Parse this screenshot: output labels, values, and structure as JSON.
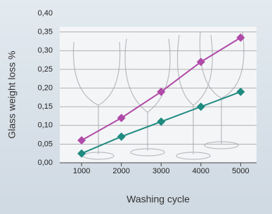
{
  "chart_data": {
    "type": "line",
    "x_label": "Washing cycle",
    "y_label": "Glass weight loss %",
    "x": [
      1000,
      2000,
      3000,
      4000,
      5000
    ],
    "series": [
      {
        "color": "#b04aa8",
        "values": [
          0.06,
          0.12,
          0.19,
          0.27,
          0.335
        ]
      },
      {
        "color": "#1e8a80",
        "values": [
          0.025,
          0.07,
          0.11,
          0.15,
          0.19
        ]
      }
    ],
    "xlim": [
      450,
      5400
    ],
    "xticks": [
      1000,
      2000,
      3000,
      4000,
      5000
    ],
    "ylim": [
      0,
      0.4
    ],
    "yticks": [
      {
        "value": 0,
        "label": "0,00"
      },
      {
        "value": 0.05,
        "label": "0,05"
      },
      {
        "value": 0.1,
        "label": "0,10"
      },
      {
        "value": 0.15,
        "label": "0,15"
      },
      {
        "value": 0.2,
        "label": "0,20"
      },
      {
        "value": 0.25,
        "label": "0,25"
      },
      {
        "value": 0.3,
        "label": "0,30"
      },
      {
        "value": 0.35,
        "label": "0,35"
      },
      {
        "value": 0.4,
        "label": "0,40"
      }
    ],
    "grid": true
  }
}
